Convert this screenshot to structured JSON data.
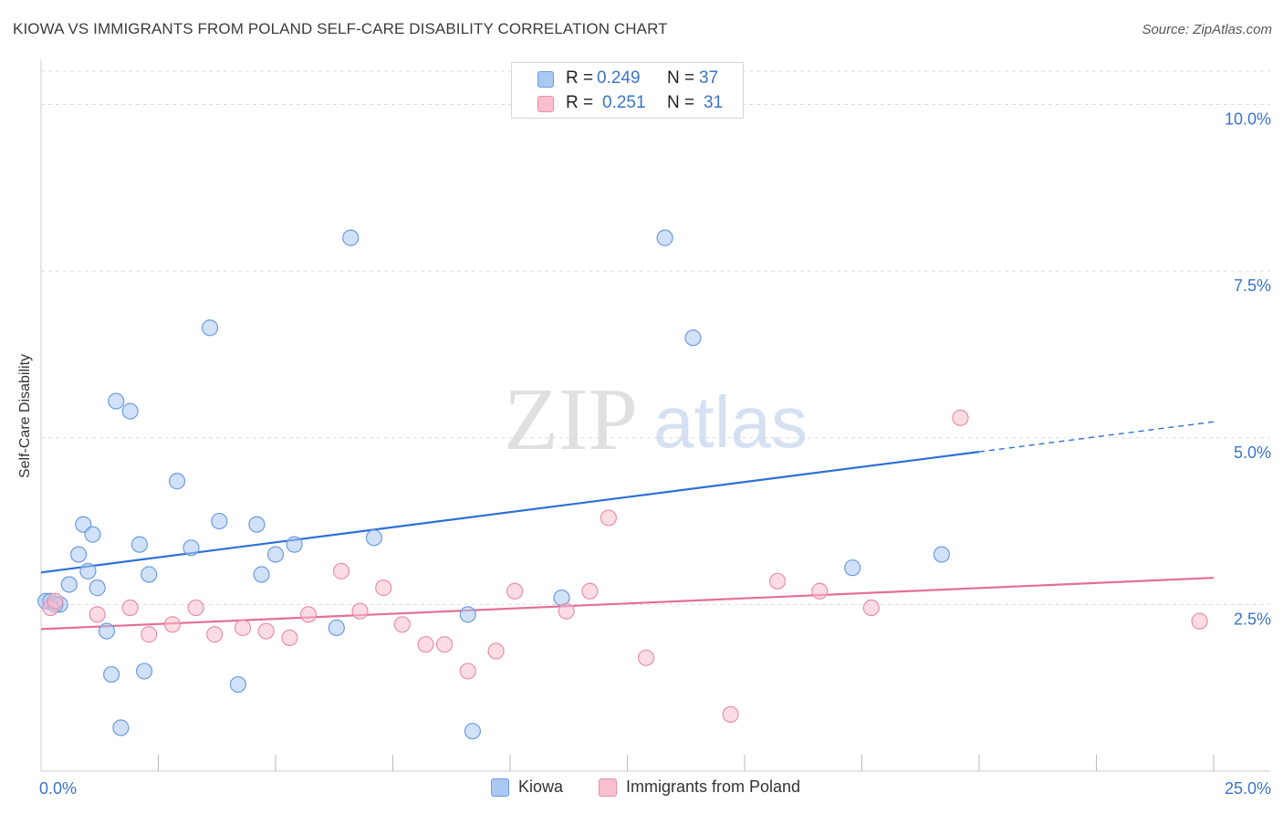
{
  "title": "KIOWA VS IMMIGRANTS FROM POLAND SELF-CARE DISABILITY CORRELATION CHART",
  "source": "Source: ZipAtlas.com",
  "watermark": {
    "zip": "ZIP",
    "atlas": "atlas"
  },
  "legend": {
    "r_label": "R =",
    "n_label": "N =",
    "rows": [
      {
        "r": "0.249",
        "n": "37"
      },
      {
        "r": "0.251",
        "n": "31"
      }
    ]
  },
  "chart_data": {
    "type": "scatter",
    "title": "KIOWA VS IMMIGRANTS FROM POLAND SELF-CARE DISABILITY CORRELATION CHART",
    "ylabel": "Self-Care Disability",
    "xlabel": "",
    "xlim": [
      0,
      25
    ],
    "ylim": [
      0,
      10.5
    ],
    "y_ticks": [
      {
        "value": 2.5,
        "label": "2.5%"
      },
      {
        "value": 5.0,
        "label": "5.0%"
      },
      {
        "value": 7.5,
        "label": "7.5%"
      },
      {
        "value": 10.0,
        "label": "10.0%"
      }
    ],
    "x_tick_labels": [
      {
        "value": 0,
        "label": "0.0%"
      },
      {
        "value": 25,
        "label": "25.0%"
      }
    ],
    "x_minor_ticks": [
      2.5,
      5,
      7.5,
      10,
      12.5,
      15,
      17.5,
      20,
      22.5,
      25
    ],
    "grid": true,
    "legend_position": "top-center",
    "series": [
      {
        "name": "Kiowa",
        "color": "#aac9f2",
        "stroke": "#6d9be0",
        "line_color": "#2e6fd4",
        "r": 0.249,
        "n": 37,
        "trend": {
          "x0": 0,
          "y0": 2.98,
          "x1": 20,
          "y1": 4.79,
          "x_dash_end": 25,
          "y_dash_end": 5.24
        },
        "points": [
          [
            0.1,
            2.55
          ],
          [
            0.2,
            2.55
          ],
          [
            0.4,
            2.5
          ],
          [
            0.6,
            2.8
          ],
          [
            0.8,
            3.25
          ],
          [
            0.9,
            3.7
          ],
          [
            1.0,
            3.0
          ],
          [
            1.1,
            3.55
          ],
          [
            1.2,
            2.75
          ],
          [
            1.4,
            2.1
          ],
          [
            1.5,
            1.45
          ],
          [
            1.6,
            5.55
          ],
          [
            1.7,
            0.65
          ],
          [
            1.9,
            5.4
          ],
          [
            2.1,
            3.4
          ],
          [
            2.2,
            1.5
          ],
          [
            2.3,
            2.95
          ],
          [
            2.9,
            4.35
          ],
          [
            3.2,
            3.35
          ],
          [
            3.6,
            6.65
          ],
          [
            3.8,
            3.75
          ],
          [
            4.2,
            1.3
          ],
          [
            4.6,
            3.7
          ],
          [
            4.7,
            2.95
          ],
          [
            5.0,
            3.25
          ],
          [
            5.4,
            3.4
          ],
          [
            6.3,
            2.15
          ],
          [
            6.6,
            8.0
          ],
          [
            7.1,
            3.5
          ],
          [
            9.1,
            2.35
          ],
          [
            9.2,
            0.6
          ],
          [
            11.1,
            2.6
          ],
          [
            13.3,
            8.0
          ],
          [
            13.9,
            6.5
          ],
          [
            17.3,
            3.05
          ],
          [
            19.2,
            3.25
          ],
          [
            0.3,
            2.5
          ]
        ]
      },
      {
        "name": "Immigrants from Poland",
        "color": "#f7bfd0",
        "stroke": "#e98fab",
        "line_color": "#e46f97",
        "r": 0.251,
        "n": 31,
        "trend": {
          "x0": 0,
          "y0": 2.13,
          "x1": 25,
          "y1": 2.9
        },
        "points": [
          [
            0.2,
            2.45
          ],
          [
            0.3,
            2.55
          ],
          [
            1.2,
            2.35
          ],
          [
            1.9,
            2.45
          ],
          [
            2.3,
            2.05
          ],
          [
            2.8,
            2.2
          ],
          [
            3.3,
            2.45
          ],
          [
            3.7,
            2.05
          ],
          [
            4.3,
            2.15
          ],
          [
            4.8,
            2.1
          ],
          [
            5.3,
            2.0
          ],
          [
            5.7,
            2.35
          ],
          [
            6.4,
            3.0
          ],
          [
            6.8,
            2.4
          ],
          [
            7.3,
            2.75
          ],
          [
            7.7,
            2.2
          ],
          [
            8.2,
            1.9
          ],
          [
            8.6,
            1.9
          ],
          [
            9.1,
            1.5
          ],
          [
            9.7,
            1.8
          ],
          [
            10.1,
            2.7
          ],
          [
            11.2,
            2.4
          ],
          [
            11.7,
            2.7
          ],
          [
            12.1,
            3.8
          ],
          [
            12.9,
            1.7
          ],
          [
            14.7,
            0.85
          ],
          [
            15.7,
            2.85
          ],
          [
            16.6,
            2.7
          ],
          [
            17.7,
            2.45
          ],
          [
            19.6,
            5.3
          ],
          [
            24.7,
            2.25
          ]
        ]
      }
    ]
  }
}
